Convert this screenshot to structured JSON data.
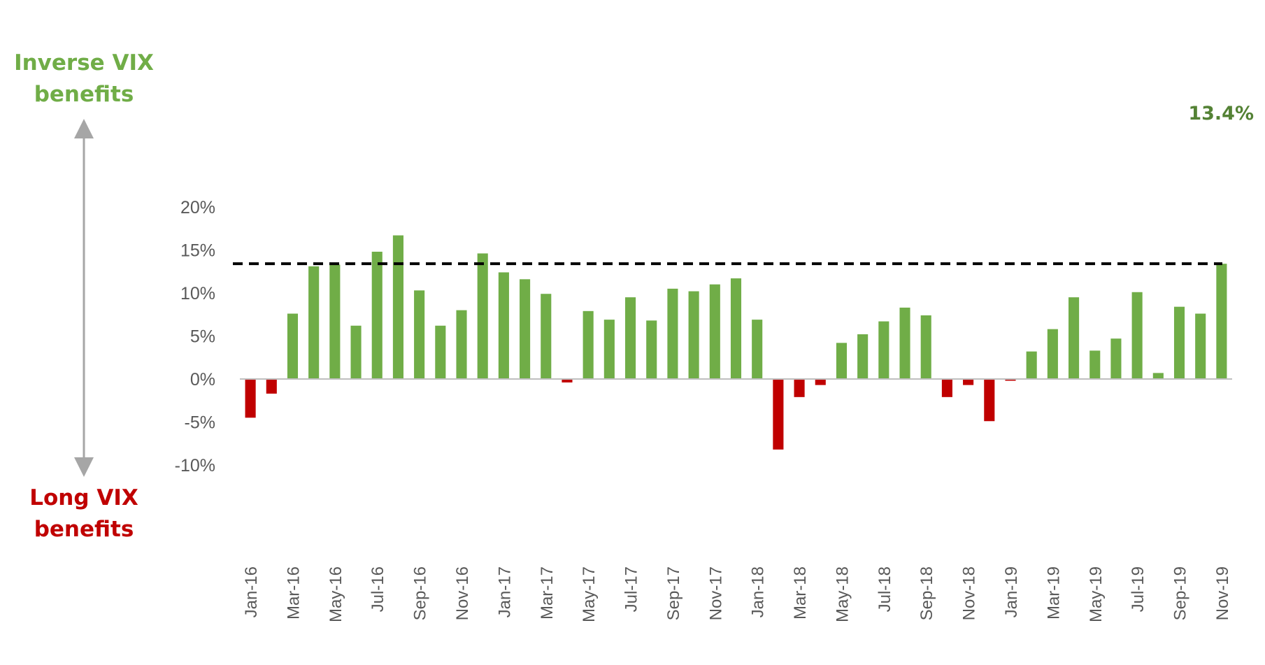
{
  "colors": {
    "positive": "#70ad47",
    "negative": "#c00000",
    "axis_text": "#595959",
    "baseline": "#bfbfbf",
    "arrow": "#a6a6a6",
    "target_line": "#000000",
    "target_label": "#548235"
  },
  "labels": {
    "inverse": "Inverse VIX benefits",
    "long": "Long VIX benefits",
    "target": "13.4%"
  },
  "chart_data": {
    "type": "bar",
    "title": "",
    "xlabel": "",
    "ylabel": "",
    "ylim": [
      -0.1,
      0.2
    ],
    "yticks": [
      -0.1,
      -0.05,
      0,
      0.05,
      0.1,
      0.15,
      0.2
    ],
    "ytick_labels": [
      "-10%",
      "-5%",
      "0%",
      "5%",
      "10%",
      "15%",
      "20%"
    ],
    "categories": [
      "Jan-16",
      "Feb-16",
      "Mar-16",
      "Apr-16",
      "May-16",
      "Jun-16",
      "Jul-16",
      "Aug-16",
      "Sep-16",
      "Oct-16",
      "Nov-16",
      "Dec-16",
      "Jan-17",
      "Feb-17",
      "Mar-17",
      "Apr-17",
      "May-17",
      "Jun-17",
      "Jul-17",
      "Aug-17",
      "Sep-17",
      "Oct-17",
      "Nov-17",
      "Dec-17",
      "Jan-18",
      "Feb-18",
      "Mar-18",
      "Apr-18",
      "May-18",
      "Jun-18",
      "Jul-18",
      "Aug-18",
      "Sep-18",
      "Oct-18",
      "Nov-18",
      "Dec-18",
      "Jan-19",
      "Feb-19",
      "Mar-19",
      "Apr-19",
      "May-19",
      "Jun-19",
      "Jul-19",
      "Aug-19",
      "Sep-19",
      "Oct-19",
      "Nov-19"
    ],
    "x_tick_labels": [
      "Jan-16",
      "Mar-16",
      "May-16",
      "Jul-16",
      "Sep-16",
      "Nov-16",
      "Jan-17",
      "Mar-17",
      "May-17",
      "Jul-17",
      "Sep-17",
      "Nov-17",
      "Jan-18",
      "Mar-18",
      "May-18",
      "Jul-18",
      "Sep-18",
      "Nov-18",
      "Jan-19",
      "Mar-19",
      "May-19",
      "Jul-19",
      "Sep-19",
      "Nov-19"
    ],
    "values": [
      -0.045,
      -0.017,
      0.076,
      0.131,
      0.133,
      0.062,
      0.148,
      0.167,
      0.103,
      0.062,
      0.08,
      0.146,
      0.124,
      0.116,
      0.099,
      -0.004,
      0.079,
      0.069,
      0.095,
      0.068,
      0.105,
      0.102,
      0.11,
      0.117,
      0.069,
      -0.082,
      -0.021,
      -0.007,
      0.042,
      0.052,
      0.067,
      0.083,
      0.074,
      -0.021,
      -0.007,
      -0.049,
      -0.002,
      0.032,
      0.058,
      0.095,
      0.033,
      0.047,
      0.101,
      0.007,
      0.084,
      0.076,
      0.134
    ],
    "reference_line": {
      "value": 0.134,
      "style": "dashed"
    },
    "grid": false,
    "legend": "none"
  }
}
